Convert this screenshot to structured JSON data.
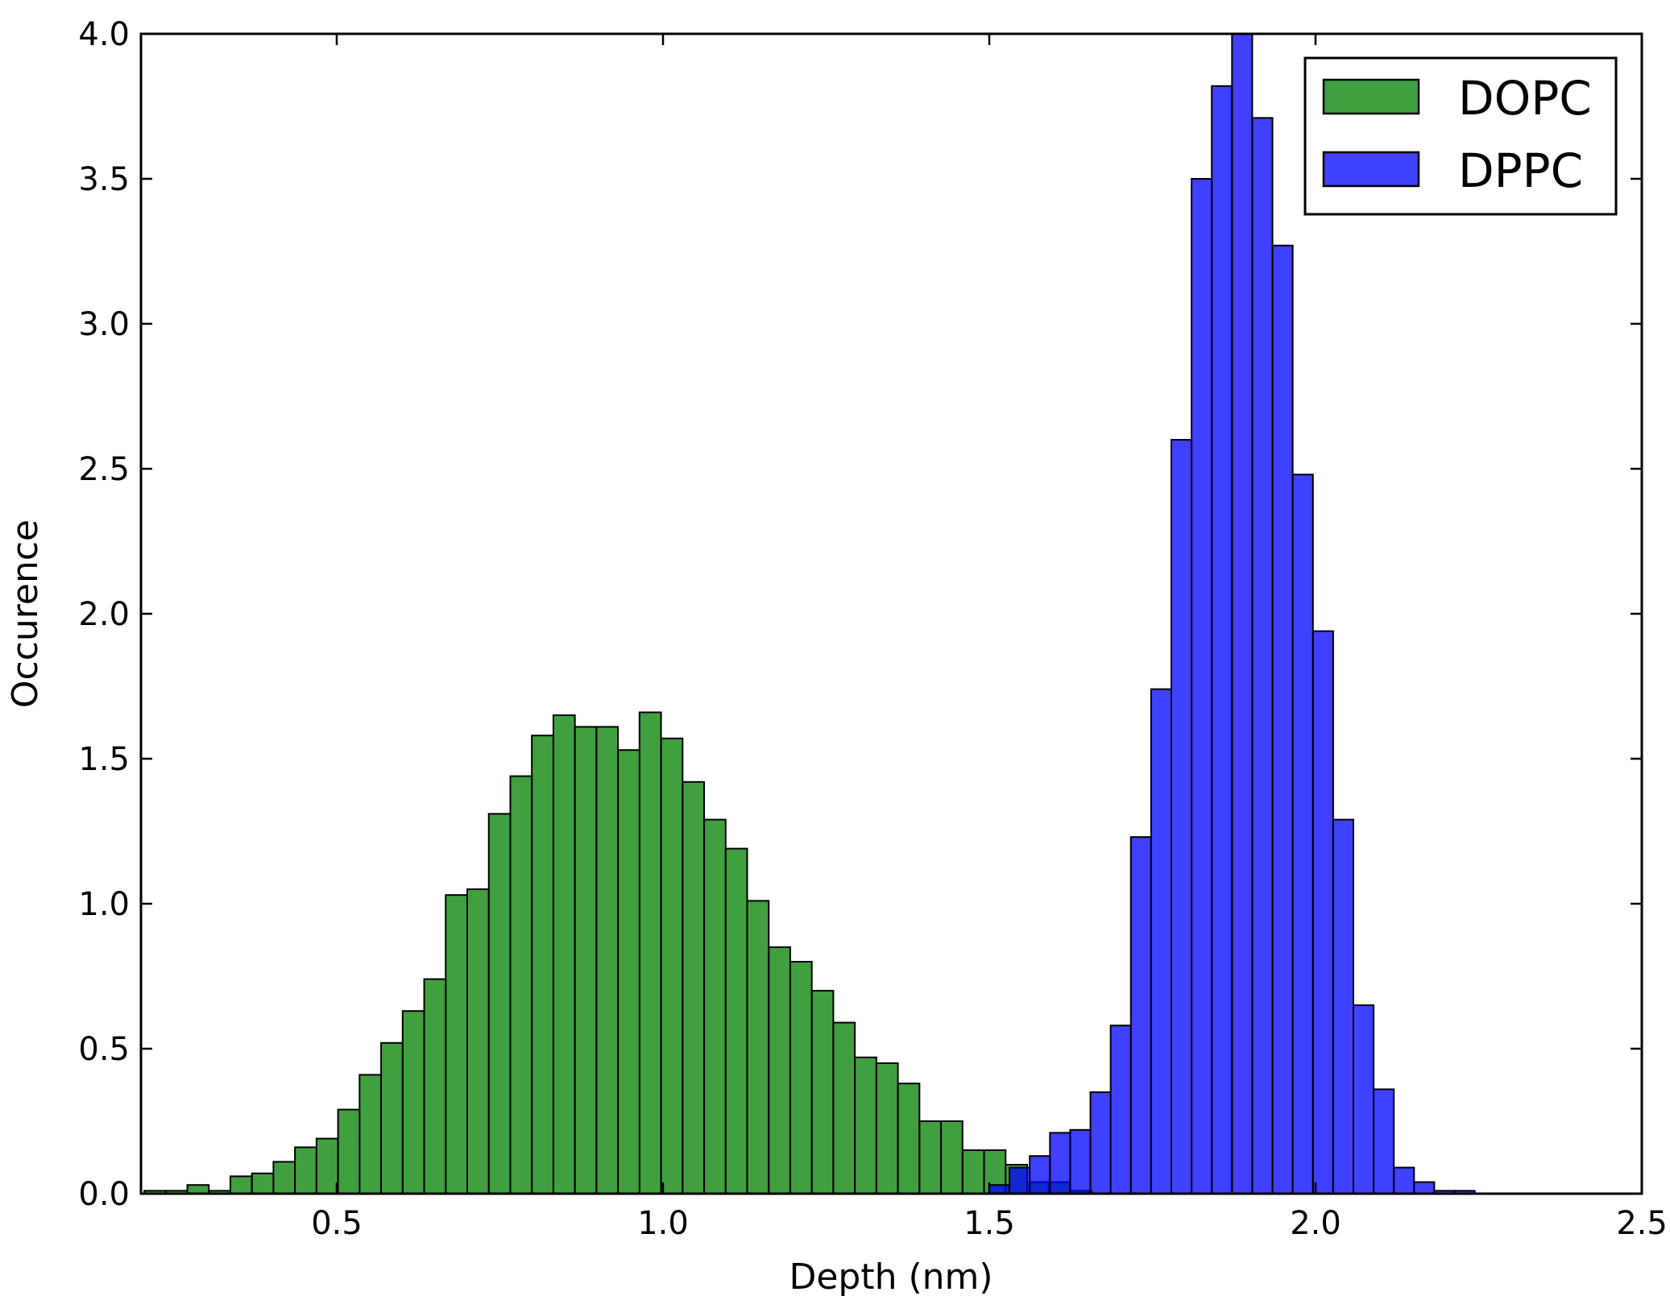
{
  "chart_data": {
    "type": "bar",
    "subtype": "histogram",
    "title": "",
    "xlabel": "Depth (nm)",
    "ylabel": "Occurence",
    "xlim": [
      0.2,
      2.5
    ],
    "ylim": [
      0.0,
      4.0
    ],
    "xticks": [
      "0.5",
      "1.0",
      "1.5",
      "2.0",
      "2.5"
    ],
    "xtick_values": [
      0.5,
      1.0,
      1.5,
      2.0,
      2.5
    ],
    "yticks": [
      "0.0",
      "0.5",
      "1.0",
      "1.5",
      "2.0",
      "2.5",
      "3.0",
      "3.5",
      "4.0"
    ],
    "ytick_values": [
      0.0,
      0.5,
      1.0,
      1.5,
      2.0,
      2.5,
      3.0,
      3.5,
      4.0
    ],
    "grid": false,
    "legend_position": "top-right",
    "series": [
      {
        "name": "DOPC",
        "color": "#008000",
        "alpha": 0.75,
        "bin_start": 0.205,
        "bin_width": 0.033,
        "values": [
          0.01,
          0.01,
          0.03,
          0.01,
          0.06,
          0.07,
          0.11,
          0.16,
          0.19,
          0.29,
          0.41,
          0.52,
          0.63,
          0.74,
          1.03,
          1.05,
          1.31,
          1.44,
          1.58,
          1.65,
          1.61,
          1.61,
          1.53,
          1.66,
          1.57,
          1.42,
          1.29,
          1.19,
          1.01,
          0.85,
          0.8,
          0.7,
          0.59,
          0.47,
          0.45,
          0.38,
          0.25,
          0.25,
          0.15,
          0.15,
          0.1,
          0.04,
          0.04,
          0.01
        ]
      },
      {
        "name": "DPPC",
        "color": "#0000ff",
        "alpha": 0.75,
        "bin_start": 1.5,
        "bin_width": 0.031,
        "values": [
          0.03,
          0.09,
          0.13,
          0.21,
          0.22,
          0.35,
          0.58,
          1.23,
          1.74,
          2.6,
          3.5,
          3.82,
          4.02,
          3.71,
          3.27,
          2.48,
          1.94,
          1.29,
          0.65,
          0.36,
          0.09,
          0.04,
          0.01,
          0.01
        ]
      }
    ]
  }
}
